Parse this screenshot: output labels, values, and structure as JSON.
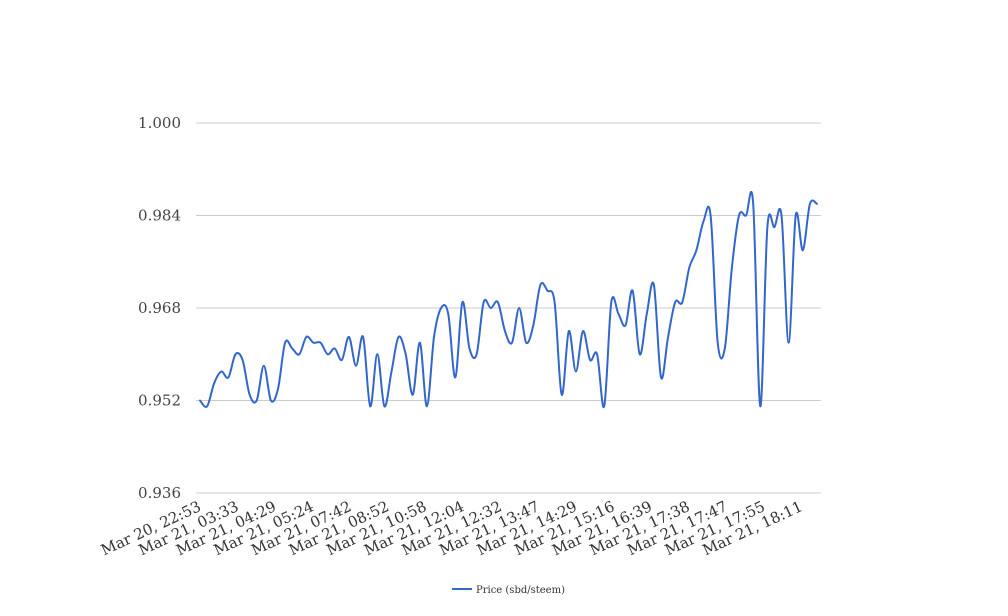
{
  "chart_data": {
    "type": "line",
    "title": "",
    "xlabel": "",
    "ylabel": "",
    "ylim": [
      0.936,
      1.0
    ],
    "yticks": [
      "0.936",
      "0.952",
      "0.968",
      "0.984",
      "1.000"
    ],
    "ytick_values": [
      0.936,
      0.952,
      0.968,
      0.984,
      1.0
    ],
    "x_tick_labels": [
      "Mar 20, 22:53",
      "Mar 21, 03:33",
      "Mar 21, 04:29",
      "Mar 21, 05:24",
      "Mar 21, 07:42",
      "Mar 21, 08:52",
      "Mar 21, 10:58",
      "Mar 21, 12:04",
      "Mar 21, 12:32",
      "Mar 21, 13:47",
      "Mar 21, 14:29",
      "Mar 21, 15:16",
      "Mar 21, 16:39",
      "Mar 21, 17:38",
      "Mar 21, 17:47",
      "Mar 21, 17:55",
      "Mar 21, 18:11"
    ],
    "grid": true,
    "legend_position": "bottom",
    "color": "#3366cc",
    "series": [
      {
        "name": "Price (sbd/steem)",
        "values": [
          0.952,
          0.951,
          0.955,
          0.957,
          0.956,
          0.96,
          0.959,
          0.953,
          0.952,
          0.958,
          0.952,
          0.954,
          0.962,
          0.961,
          0.96,
          0.963,
          0.962,
          0.962,
          0.96,
          0.961,
          0.959,
          0.963,
          0.958,
          0.963,
          0.951,
          0.96,
          0.951,
          0.957,
          0.963,
          0.96,
          0.953,
          0.962,
          0.951,
          0.963,
          0.968,
          0.967,
          0.956,
          0.969,
          0.961,
          0.96,
          0.969,
          0.968,
          0.969,
          0.964,
          0.962,
          0.968,
          0.962,
          0.965,
          0.972,
          0.971,
          0.969,
          0.953,
          0.964,
          0.957,
          0.964,
          0.959,
          0.96,
          0.951,
          0.969,
          0.967,
          0.965,
          0.971,
          0.96,
          0.967,
          0.972,
          0.956,
          0.963,
          0.969,
          0.969,
          0.975,
          0.978,
          0.983,
          0.984,
          0.962,
          0.961,
          0.975,
          0.984,
          0.984,
          0.986,
          0.951,
          0.982,
          0.982,
          0.984,
          0.962,
          0.984,
          0.978,
          0.986,
          0.986
        ]
      }
    ]
  }
}
